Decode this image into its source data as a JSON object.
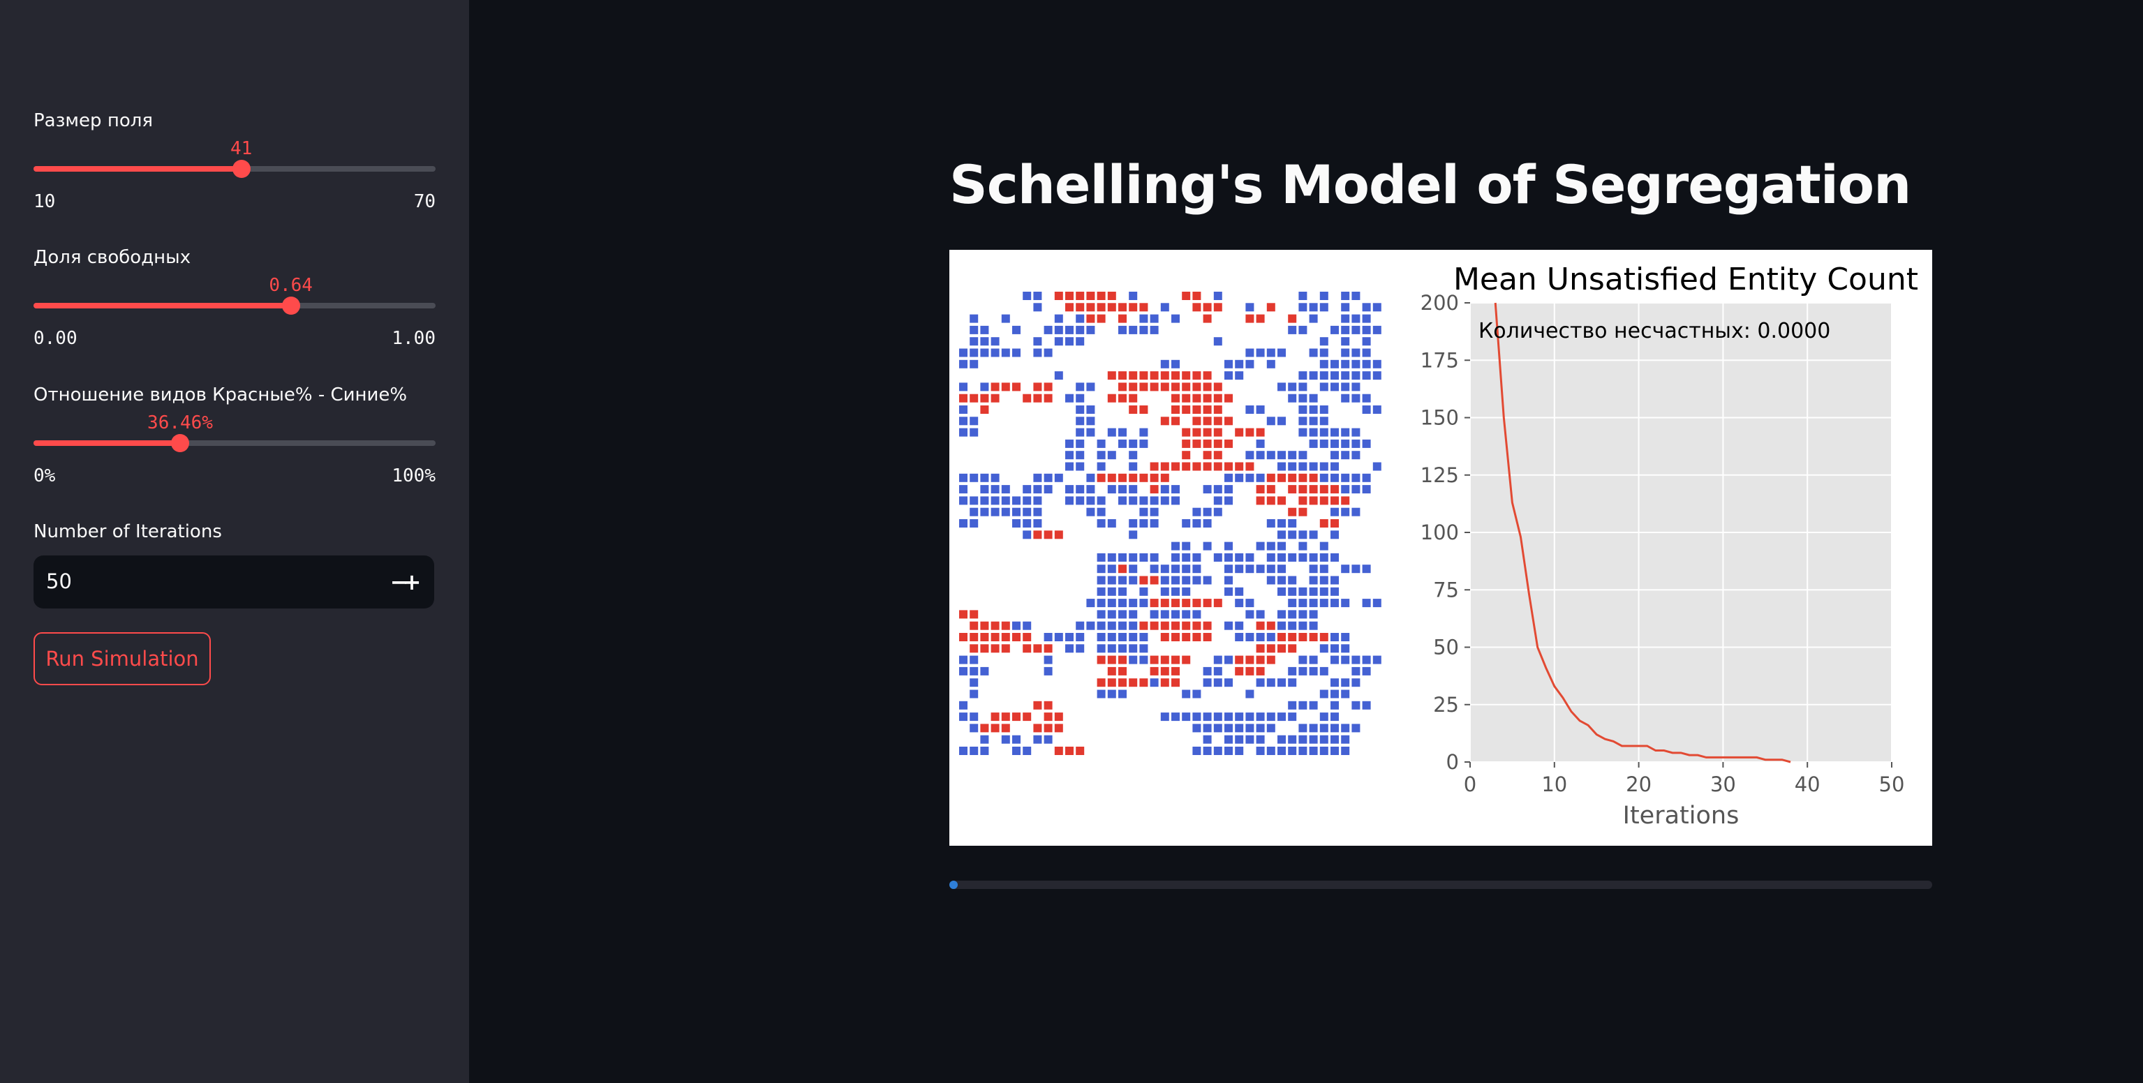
{
  "sidebar": {
    "field_size": {
      "label": "Размер поля",
      "value": "41",
      "min": "10",
      "max": "70",
      "fraction": 0.5167
    },
    "free_share": {
      "label": "Доля свободных",
      "value": "0.64",
      "min": "0.00",
      "max": "1.00",
      "fraction": 0.64
    },
    "ratio": {
      "label": "Отношение видов Красные% - Синие%",
      "value": "36.46%",
      "min": "0%",
      "max": "100%",
      "fraction": 0.3646
    },
    "iterations": {
      "label": "Number of Iterations",
      "value": "50",
      "minus": "−",
      "plus": "+"
    },
    "run_button": "Run Simulation"
  },
  "main": {
    "title": "Schelling's Model of Segregation",
    "progress_fraction": 0.005
  },
  "grid": {
    "cells": 41,
    "colors": {
      "red": "#e2392e",
      "blue": "#4461d3"
    },
    "rows": [
      "......BB.RRRRRR.B....RR.B.......B.B.BB...",
      ".......B..RRRRRRRR.B..RRR..B.R..BBB.B.BB.",
      ".B..B....B.BRR.R.BB.B..R...RR..R.B..BBB..",
      ".BB..B..BBBBB..BBBB............BB..BBBBB.",
      ".BBB...B.BBB............B.........B.B.B..",
      "BBBBBB.BB..................BBBB..BB.BBB..",
      "BB.................BB....BBB.B....BBBBBB.",
      ".........B....RRRRRRRRRR.BB.....BBBBBBBB.",
      "B.BRRR.RR..BB..RRRRRRRRRR.....BBB.BBBB...",
      "RRRR..RRR.BB..RRR...RRRRRR.....BBB..BBB..",
      "B.R........BB...RR..RRRRR..BB...BBB...BB.",
      "BB.........BB......RR.RRRR...BB.BBB......",
      "BB.........BB.BB.B...RRRR.RRR...BBBBBB...",
      "..........BB.B.BBB...RRRRR..B....BBBBBB..",
      "..........BB.BB.B....R.RR..BBBBBB..BBB...",
      "..........BB.B..B.RRRRRRRRRR..BBBBBB...B.",
      "BBBB...BBB..BRRRRRRR.....BBBBRRRRRBBBBB..",
      "B.BBB.BBB.BBB.BBB.RBB..BBB..RR.RRRRRBBB..",
      "BBBBBBBB..BBBB.BBBBBB...BB..RRR.RRRRR....",
      ".BBBBBBB....BB...BB...BBB......RR..BBB...",
      "BB...BBB.....BB.BBB..BBB.....BBB..RR.....",
      "......BRRR......B.............BBBB.B.....",
      "....................BB.B.B..BBB.B.B......",
      ".............BBBBBB.BBB.BBBB.BBBBBBB.....",
      ".............BBRB.BBBBB..BBBBBB..BB.BBB..",
      ".............BBBBRRBBBBB.B...BBB.BBB.....",
      ".............BBB.B.BBB...BB...BBBBBB.....",
      "............BBBBBBRRRRRRR.BB...BBBBBB.BB.",
      "RR...........BBBB.BBBBB....BB.BBBB......",
      ".RRRRBB....BBBBBBRRRRRRR.BB.RRBBBB.......",
      "RRRRRRR.BBBB.BBBBB.RRRRR..BBBBRRRRRBB....",
      ".RRRR.RRR.BB.BBBBB..........RRRR..BBB....",
      "BB......B....RRRBBRRRR..BBRRRR..BB.BBBBB.",
      "BBB.....B.....RR..RRR..BB.RRR..BBBB..BB..",
      ".B...........RRRRRBRR..BBB..BBBB...BBB..",
      ".B...........BBB.....BB....B......BBB.....",
      "B......RR......................BBB.B.BB..",
      "BB.RRRR.RR.........BBBBBBBBBBBBB..BB......",
      ".BRRR..RRR............BBBBBBBB..BBBBBB...",
      "..B.BB.BB..............B.BBBB.BBBBBBB....",
      "BBB..BB..RRR..........BBBBB.BBBBBBBBB...."
    ]
  },
  "chart_data": {
    "type": "line",
    "title": "Mean Unsatisfied Entity Count",
    "xlabel": "Iterations",
    "ylabel": "",
    "annotation": "Количество несчастных: 0.0000",
    "xlim": [
      0,
      50
    ],
    "ylim": [
      0,
      200
    ],
    "xticks": [
      0,
      10,
      20,
      30,
      40,
      50
    ],
    "yticks": [
      0,
      25,
      50,
      75,
      100,
      125,
      150,
      175,
      200
    ],
    "grid": true,
    "line_color": "#e24a33",
    "x": [
      3,
      4,
      5,
      6,
      7,
      8,
      9,
      10,
      11,
      12,
      13,
      14,
      15,
      16,
      17,
      18,
      19,
      20,
      21,
      22,
      23,
      24,
      25,
      26,
      27,
      28,
      29,
      30,
      31,
      32,
      33,
      34,
      35,
      36,
      37,
      38
    ],
    "values": [
      200,
      150,
      113,
      98,
      73,
      50,
      41,
      33,
      28,
      22,
      18,
      16,
      12,
      10,
      9,
      7,
      7,
      7,
      7,
      5,
      5,
      4,
      4,
      3,
      3,
      2,
      2,
      2,
      2,
      2,
      2,
      2,
      1,
      1,
      1,
      0
    ]
  }
}
